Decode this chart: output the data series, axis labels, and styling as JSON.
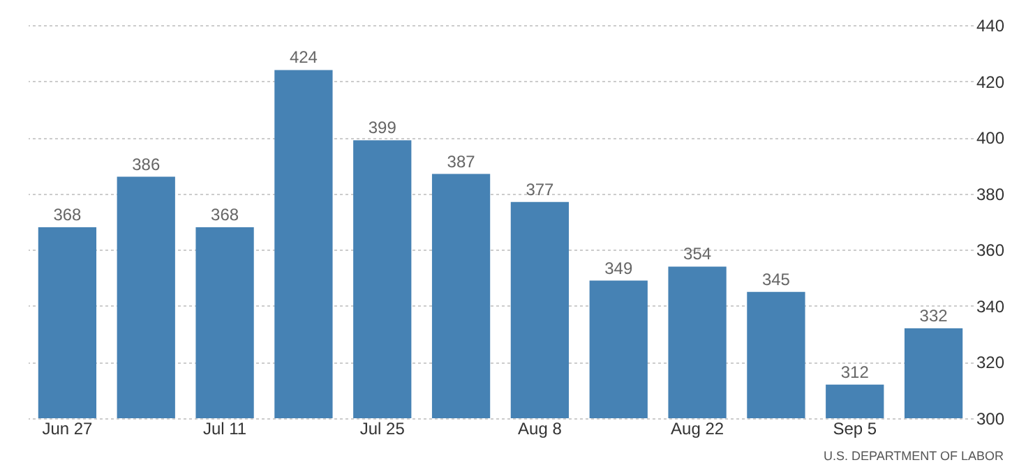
{
  "chart_data": {
    "type": "bar",
    "categories": [
      "Jun 27",
      null,
      "Jul 11",
      null,
      "Jul 25",
      null,
      "Aug 8",
      null,
      "Aug 22",
      null,
      "Sep 5",
      null
    ],
    "values": [
      368,
      386,
      368,
      424,
      399,
      387,
      377,
      349,
      354,
      345,
      312,
      332
    ],
    "color": "#4682b4",
    "ylim": [
      300,
      440
    ],
    "yticks": [
      300,
      320,
      340,
      360,
      380,
      400,
      420,
      440
    ],
    "grid": "y",
    "data_labels": true,
    "annotations": [
      "U.S. DEPARTMENT OF LABOR"
    ]
  }
}
